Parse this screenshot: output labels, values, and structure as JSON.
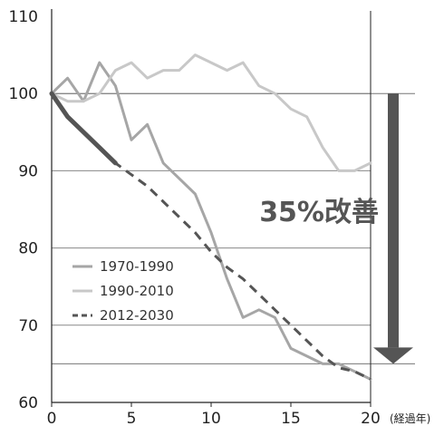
{
  "chart_data": {
    "type": "line",
    "title": "",
    "xlabel": "(経過年)",
    "ylabel": "",
    "xlim": [
      0,
      20
    ],
    "ylim": [
      60,
      110
    ],
    "x_ticks": [
      "0",
      "5",
      "10",
      "15",
      "20"
    ],
    "y_ticks": [
      "60",
      "70",
      "80",
      "90",
      "100",
      "110"
    ],
    "grid": "horizontal",
    "legend_position": "bottom-left",
    "series": [
      {
        "name": "1970-1990",
        "color": "#a6a6a6",
        "style": "solid",
        "x": [
          0,
          1,
          2,
          3,
          4,
          5,
          6,
          7,
          8,
          9,
          10,
          11,
          12,
          13,
          14,
          15,
          16,
          17,
          18,
          19,
          20
        ],
        "values": [
          100,
          102,
          99,
          104,
          101,
          94,
          96,
          91,
          89,
          87,
          82,
          76,
          71,
          72,
          71,
          67,
          66,
          65,
          65,
          64,
          63
        ]
      },
      {
        "name": "1990-2010",
        "color": "#c8c8c8",
        "style": "solid",
        "x": [
          0,
          1,
          2,
          3,
          4,
          5,
          6,
          7,
          8,
          9,
          10,
          11,
          12,
          13,
          14,
          15,
          16,
          17,
          18,
          19,
          20
        ],
        "values": [
          100,
          99,
          99,
          100,
          103,
          104,
          102,
          103,
          103,
          105,
          104,
          103,
          104,
          101,
          100,
          98,
          97,
          93,
          90,
          90,
          91
        ]
      },
      {
        "name": "2012-2030",
        "color": "#555555",
        "style": "dashed",
        "x": [
          0,
          1,
          2,
          3,
          4,
          5,
          6,
          7,
          8,
          9,
          10,
          11,
          12,
          13,
          14,
          15,
          16,
          17,
          18,
          19,
          20
        ],
        "values": [
          100,
          97,
          95,
          93,
          91,
          89.5,
          88,
          86,
          84,
          82,
          79.5,
          77.5,
          76,
          74,
          72,
          70,
          68,
          66,
          64.5,
          64,
          63
        ],
        "solid_until_x": 4
      }
    ],
    "reference_lines": [
      {
        "y": 100,
        "color": "#777777"
      },
      {
        "y": 65,
        "color": "#777777"
      }
    ],
    "annotation": {
      "text": "35%改善",
      "arrow_from_y": 100,
      "arrow_to_y": 65,
      "color": "#555555"
    }
  }
}
